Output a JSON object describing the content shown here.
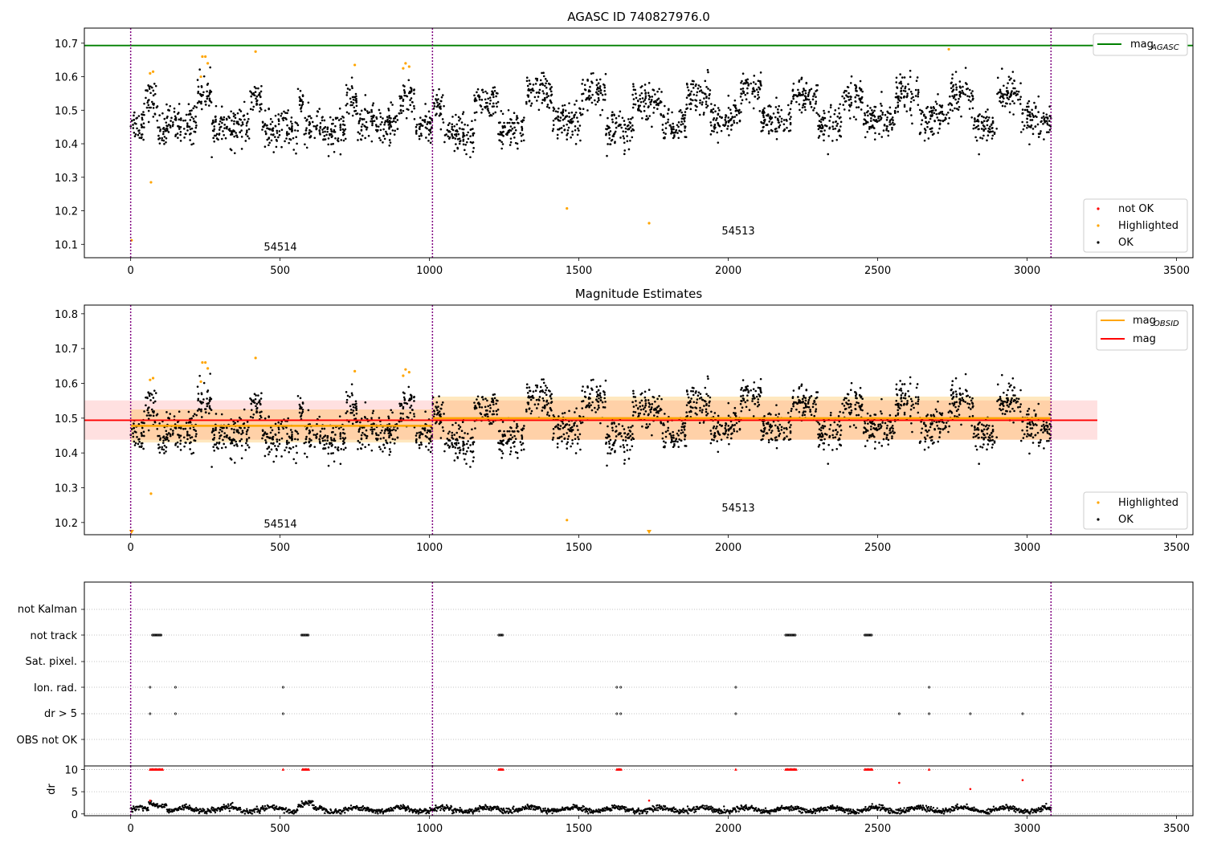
{
  "figure": {
    "title": "AGASC ID 740827976.0"
  },
  "chart_data": [
    {
      "type": "scatter",
      "title": "AGASC ID 740827976.0",
      "xlabel": "",
      "ylabel": "",
      "xlim": [
        -155,
        3555
      ],
      "ylim": [
        10.06,
        10.745
      ],
      "x_ticks": [
        "0",
        "500",
        "1000",
        "1500",
        "2000",
        "2500",
        "3000",
        "3500"
      ],
      "y_ticks": [
        "10.1",
        "10.2",
        "10.3",
        "10.4",
        "10.5",
        "10.6",
        "10.7"
      ],
      "hlines": [
        {
          "name": "mag_AGASC",
          "y": 10.693,
          "color": "#008000"
        }
      ],
      "vlines": [
        {
          "x": 0
        },
        {
          "x": 1010
        },
        {
          "x": 3080
        }
      ],
      "annotations": [
        {
          "text": "54514",
          "x": 500,
          "y": 10.085
        },
        {
          "text": "54513",
          "x": 2045,
          "y": 10.13
        }
      ],
      "legend": {
        "placement": "top-right",
        "entries": [
          {
            "label_main": "mag",
            "label_sub": "AGASC",
            "kind": "line",
            "color": "#008000"
          }
        ]
      },
      "legend2": {
        "placement": "bottom-right",
        "entries": [
          {
            "label": "not OK",
            "kind": "dot",
            "color": "#ff0000"
          },
          {
            "label": "Highlighted",
            "kind": "dot",
            "color": "#ffa500"
          },
          {
            "label": "OK",
            "kind": "dot",
            "color": "#000000"
          }
        ]
      },
      "series": [
        {
          "name": "OK",
          "color": "#000000",
          "description": "clusters of points per observation; values vary around 10.38-10.66"
        },
        {
          "name": "Highlighted",
          "color": "#ffa500",
          "points": [
            [
              3,
              10.112
            ],
            [
              65,
              10.61
            ],
            [
              75,
              10.615
            ],
            [
              68,
              10.285
            ],
            [
              235,
              10.6
            ],
            [
              240,
              10.66
            ],
            [
              250,
              10.66
            ],
            [
              258,
              10.64
            ],
            [
              418,
              10.675
            ],
            [
              750,
              10.635
            ],
            [
              912,
              10.625
            ],
            [
              920,
              10.64
            ],
            [
              932,
              10.63
            ],
            [
              1460,
              10.207
            ],
            [
              1735,
              10.163
            ],
            [
              2738,
              10.682
            ]
          ]
        }
      ]
    },
    {
      "type": "scatter",
      "title": "Magnitude Estimates",
      "xlabel": "",
      "ylabel": "",
      "xlim": [
        -155,
        3555
      ],
      "ylim": [
        10.165,
        10.825
      ],
      "x_ticks": [
        "0",
        "500",
        "1000",
        "1500",
        "2000",
        "2500",
        "3000",
        "3500"
      ],
      "y_ticks": [
        "10.2",
        "10.3",
        "10.4",
        "10.5",
        "10.6",
        "10.7",
        "10.8"
      ],
      "mag": {
        "value": 10.494,
        "band": [
          10.438,
          10.551
        ],
        "x_range": [
          -155,
          3235
        ],
        "color": "#ff0000"
      },
      "mag_obsid": [
        {
          "x": [
            0,
            1010
          ],
          "value": 10.478,
          "band": [
            10.43,
            10.525
          ]
        },
        {
          "x": [
            1010,
            3080
          ],
          "value": 10.5,
          "band": [
            10.438,
            10.562
          ]
        }
      ],
      "vlines": [
        {
          "x": 0
        },
        {
          "x": 1010
        },
        {
          "x": 3080
        }
      ],
      "annotations": [
        {
          "text": "54514",
          "x": 500,
          "y": 10.19
        },
        {
          "text": "54513",
          "x": 2045,
          "y": 10.235
        }
      ],
      "legend": {
        "placement": "top-right",
        "entries": [
          {
            "label_main": "mag",
            "label_sub": "OBSID",
            "kind": "line",
            "color": "#ffa500"
          },
          {
            "label_main": "mag",
            "label_sub": "",
            "kind": "line",
            "color": "#ff0000"
          }
        ]
      },
      "legend2": {
        "placement": "bottom-right",
        "entries": [
          {
            "label": "Highlighted",
            "kind": "dot",
            "color": "#ffa500"
          },
          {
            "label": "OK",
            "kind": "dot",
            "color": "#000000"
          }
        ]
      },
      "series": [
        {
          "name": "OK",
          "color": "#000000"
        },
        {
          "name": "Highlighted",
          "color": "#ffa500",
          "points": [
            [
              65,
              10.61
            ],
            [
              75,
              10.615
            ],
            [
              68,
              10.283
            ],
            [
              235,
              10.605
            ],
            [
              240,
              10.66
            ],
            [
              250,
              10.66
            ],
            [
              258,
              10.643
            ],
            [
              418,
              10.673
            ],
            [
              750,
              10.635
            ],
            [
              912,
              10.622
            ],
            [
              920,
              10.64
            ],
            [
              932,
              10.632
            ],
            [
              1460,
              10.207
            ]
          ],
          "markers_at_bottom": [
            [
              3,
              "triangle"
            ],
            [
              1735,
              "triangle"
            ]
          ]
        }
      ]
    },
    {
      "type": "scatter",
      "title": "",
      "xlim": [
        -155,
        3555
      ],
      "x_ticks": [
        "0",
        "500",
        "1000",
        "1500",
        "2000",
        "2500",
        "3000",
        "3500"
      ],
      "categories": [
        "not Kalman",
        "not track",
        "Sat. pixel.",
        "Ion. rad.",
        "dr > 5",
        "OBS not OK"
      ],
      "flags": {
        "not track": [
          [
            73,
            105
          ],
          [
            572,
            597
          ],
          [
            1232,
            1247
          ],
          [
            2192,
            2227
          ],
          [
            2457,
            2482
          ]
        ],
        "Ion. rad.": [
          65,
          150,
          510,
          1627,
          1640,
          2025,
          2672
        ],
        "dr > 5": [
          65,
          150,
          510,
          1627,
          1640,
          2025,
          2572,
          2672,
          2810,
          2985
        ]
      },
      "vlines": [
        {
          "x": 0
        },
        {
          "x": 1010
        },
        {
          "x": 3080
        }
      ]
    },
    {
      "type": "line",
      "ylabel": "dr",
      "y_ticks": [
        "0",
        "5",
        "10"
      ],
      "ylim": [
        -0.4,
        10.8
      ],
      "xlim": [
        -155,
        3555
      ],
      "x_ticks": [
        "0",
        "500",
        "1000",
        "1500",
        "2000",
        "2500",
        "3000",
        "3500"
      ],
      "vlines": [
        {
          "x": 0
        },
        {
          "x": 1010
        },
        {
          "x": 3080
        }
      ],
      "red_at_10": [
        [
          65,
          110
        ],
        [
          510,
          512
        ],
        [
          575,
          597
        ],
        [
          1232,
          1247
        ],
        [
          1627,
          1642
        ],
        [
          2025,
          2027
        ],
        [
          2192,
          2227
        ],
        [
          2457,
          2484
        ],
        [
          2672,
          2674
        ]
      ],
      "red_scatter": [
        [
          2572,
          7.0
        ],
        [
          2810,
          5.6
        ],
        [
          2985,
          7.6
        ],
        [
          1735,
          3.0
        ],
        [
          65,
          3.0
        ]
      ],
      "black_line_description": "dense black points around 0-2.5"
    }
  ],
  "text": {
    "fig_title": "AGASC ID 740827976.0",
    "ax2_title": "Magnitude Estimates",
    "ax1_legend_top_main": "mag",
    "ax1_legend_top_sub": "AGASC",
    "ax1_legend_bot": [
      "not OK",
      "Highlighted",
      "OK"
    ],
    "ax2_legend_top_main_1": "mag",
    "ax2_legend_top_sub_1": "OBSID",
    "ax2_legend_top_main_2": "mag",
    "ax2_legend_bot": [
      "Highlighted",
      "OK"
    ],
    "ax1_ann1": "54514",
    "ax1_ann2": "54513",
    "ax2_ann1": "54514",
    "ax2_ann2": "54513",
    "ax3_categories": [
      "not Kalman",
      "not track",
      "Sat. pixel.",
      "Ion. rad.",
      "dr > 5",
      "OBS not OK"
    ],
    "ax4_ylabel": "dr"
  }
}
